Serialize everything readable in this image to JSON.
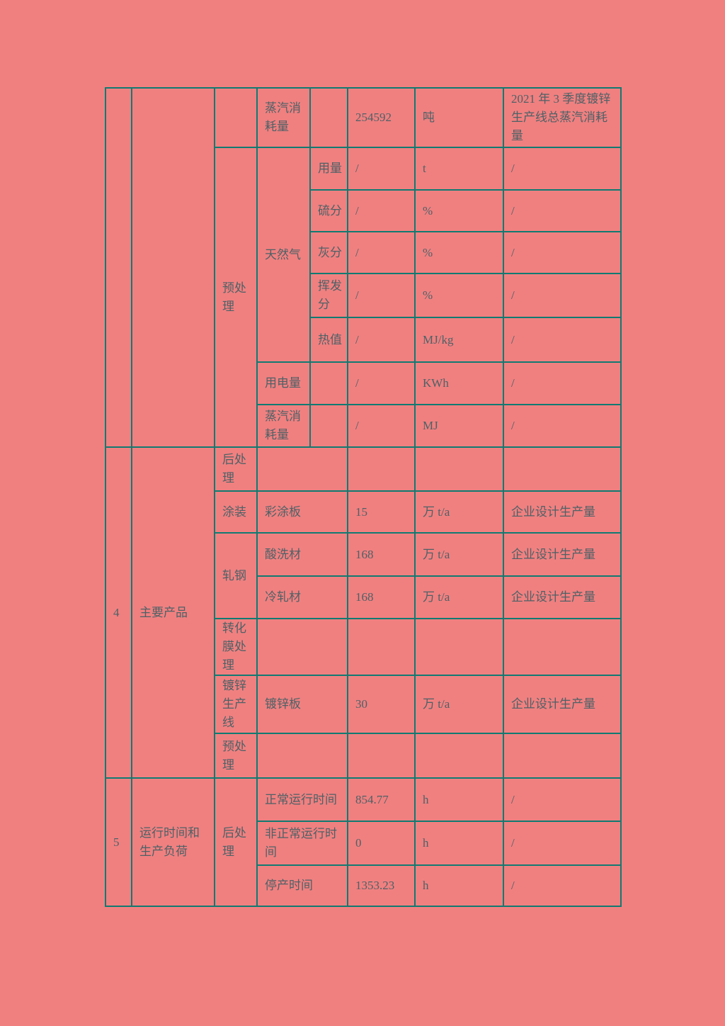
{
  "page": {
    "background_color": "#f08080",
    "border_color": "#107a72",
    "text_color": "#4d6166"
  },
  "table": {
    "rows": [
      {
        "cells": [
          {
            "t": ""
          },
          {
            "t": ""
          },
          {
            "t": ""
          },
          {
            "t": "蒸汽消耗量"
          },
          {
            "t": ""
          },
          {
            "t": "254592"
          },
          {
            "t": "吨"
          },
          {
            "t": "2021 年 3 季度镀锌生产线总蒸汽消耗量"
          }
        ]
      },
      {
        "cells": [
          {
            "t": "预处理"
          },
          {
            "t": "天然气"
          },
          {
            "t": "用量"
          },
          {
            "t": "/"
          },
          {
            "t": "t"
          },
          {
            "t": "/"
          }
        ]
      },
      {
        "cells": [
          {
            "t": "硫分"
          },
          {
            "t": "/"
          },
          {
            "t": "%"
          },
          {
            "t": "/"
          }
        ]
      },
      {
        "cells": [
          {
            "t": "灰分"
          },
          {
            "t": "/"
          },
          {
            "t": "%"
          },
          {
            "t": "/"
          }
        ]
      },
      {
        "cells": [
          {
            "t": "挥发分"
          },
          {
            "t": "/"
          },
          {
            "t": "%"
          },
          {
            "t": "/"
          }
        ]
      },
      {
        "cells": [
          {
            "t": "热值"
          },
          {
            "t": "/"
          },
          {
            "t": "MJ/kg"
          },
          {
            "t": "/"
          }
        ]
      },
      {
        "cells": [
          {
            "t": "用电量"
          },
          {
            "t": ""
          },
          {
            "t": "/"
          },
          {
            "t": "KWh"
          },
          {
            "t": "/"
          }
        ]
      },
      {
        "cells": [
          {
            "t": "蒸汽消耗量"
          },
          {
            "t": ""
          },
          {
            "t": "/"
          },
          {
            "t": "MJ"
          },
          {
            "t": "/"
          }
        ]
      },
      {
        "cells": [
          {
            "t": "4"
          },
          {
            "t": "主要产品"
          },
          {
            "t": "后处理"
          },
          {
            "t": ""
          },
          {
            "t": ""
          },
          {
            "t": ""
          },
          {
            "t": ""
          }
        ]
      },
      {
        "cells": [
          {
            "t": "涂装"
          },
          {
            "t": "彩涂板"
          },
          {
            "t": "15"
          },
          {
            "t": "万 t/a"
          },
          {
            "t": "企业设计生产量"
          }
        ]
      },
      {
        "cells": [
          {
            "t": "轧钢"
          },
          {
            "t": "酸洗材"
          },
          {
            "t": "168"
          },
          {
            "t": "万 t/a"
          },
          {
            "t": "企业设计生产量"
          }
        ]
      },
      {
        "cells": [
          {
            "t": "冷轧材"
          },
          {
            "t": "168"
          },
          {
            "t": "万 t/a"
          },
          {
            "t": "企业设计生产量"
          }
        ]
      },
      {
        "cells": [
          {
            "t": "转化膜处理"
          },
          {
            "t": ""
          },
          {
            "t": ""
          },
          {
            "t": ""
          },
          {
            "t": ""
          }
        ]
      },
      {
        "cells": [
          {
            "t": "镀锌生产线"
          },
          {
            "t": "镀锌板"
          },
          {
            "t": "30"
          },
          {
            "t": "万 t/a"
          },
          {
            "t": "企业设计生产量"
          }
        ]
      },
      {
        "cells": [
          {
            "t": "预处理"
          },
          {
            "t": ""
          },
          {
            "t": ""
          },
          {
            "t": ""
          },
          {
            "t": ""
          }
        ]
      },
      {
        "cells": [
          {
            "t": "5"
          },
          {
            "t": "运行时间和生产负荷"
          },
          {
            "t": "后处理"
          },
          {
            "t": "正常运行时间"
          },
          {
            "t": "854.77"
          },
          {
            "t": "h"
          },
          {
            "t": "/"
          }
        ]
      },
      {
        "cells": [
          {
            "t": "非正常运行时间"
          },
          {
            "t": "0"
          },
          {
            "t": "h"
          },
          {
            "t": "/"
          }
        ]
      },
      {
        "cells": [
          {
            "t": "停产时间"
          },
          {
            "t": "1353.23"
          },
          {
            "t": "h"
          },
          {
            "t": "/"
          }
        ]
      }
    ]
  }
}
